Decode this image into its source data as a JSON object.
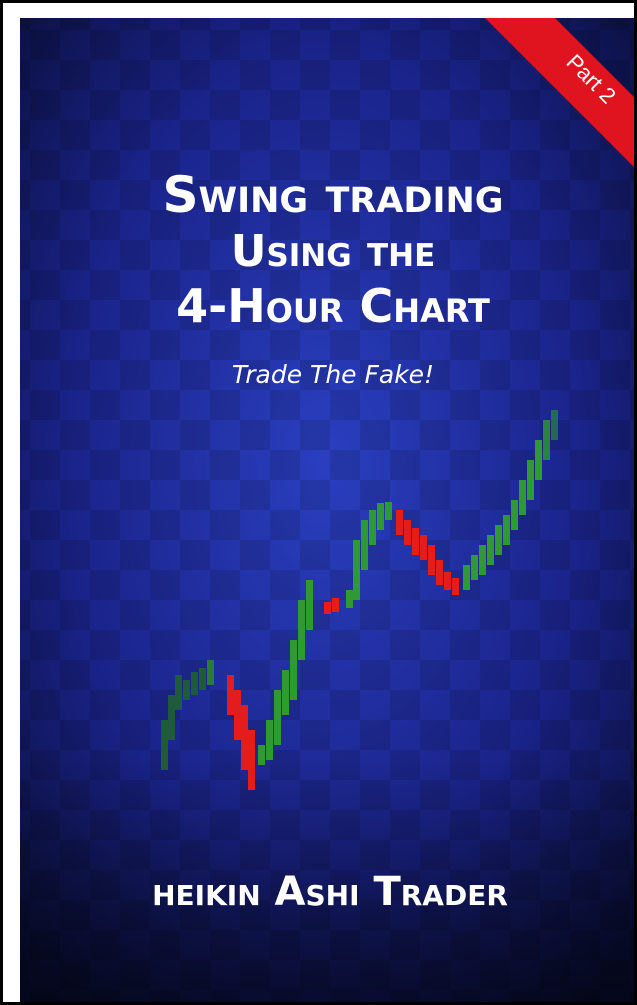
{
  "cover": {
    "badge": "Part 2",
    "title_lines": [
      "Swing trading",
      "Using the",
      "4-Hour Chart"
    ],
    "subtitle": "Trade The Fake!",
    "author": "heikin Ashi Trader"
  }
}
